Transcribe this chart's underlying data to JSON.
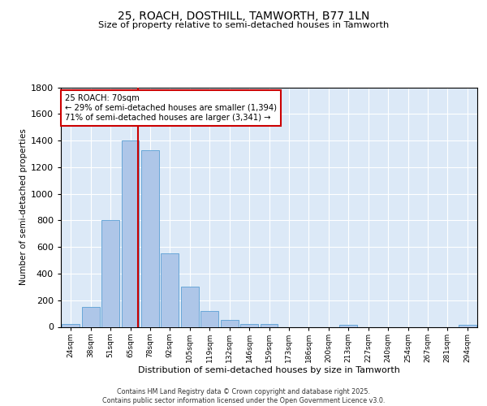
{
  "title1": "25, ROACH, DOSTHILL, TAMWORTH, B77 1LN",
  "title2": "Size of property relative to semi-detached houses in Tamworth",
  "xlabel": "Distribution of semi-detached houses by size in Tamworth",
  "ylabel": "Number of semi-detached properties",
  "annotation_title": "25 ROACH: 70sqm",
  "annotation_line1": "← 29% of semi-detached houses are smaller (1,394)",
  "annotation_line2": "71% of semi-detached houses are larger (3,341) →",
  "footer1": "Contains HM Land Registry data © Crown copyright and database right 2025.",
  "footer2": "Contains public sector information licensed under the Open Government Licence v3.0.",
  "bin_labels": [
    "24sqm",
    "38sqm",
    "51sqm",
    "65sqm",
    "78sqm",
    "92sqm",
    "105sqm",
    "119sqm",
    "132sqm",
    "146sqm",
    "159sqm",
    "173sqm",
    "186sqm",
    "200sqm",
    "213sqm",
    "227sqm",
    "240sqm",
    "254sqm",
    "267sqm",
    "281sqm",
    "294sqm"
  ],
  "bar_values": [
    20,
    150,
    800,
    1400,
    1330,
    550,
    300,
    120,
    50,
    20,
    20,
    0,
    0,
    0,
    15,
    0,
    0,
    0,
    0,
    0,
    15
  ],
  "bar_color": "#aec6e8",
  "bar_edge_color": "#5a9fd4",
  "vline_color": "#cc0000",
  "bg_color": "#dce9f7",
  "ylim": [
    0,
    1800
  ],
  "yticks": [
    0,
    200,
    400,
    600,
    800,
    1000,
    1200,
    1400,
    1600,
    1800
  ]
}
